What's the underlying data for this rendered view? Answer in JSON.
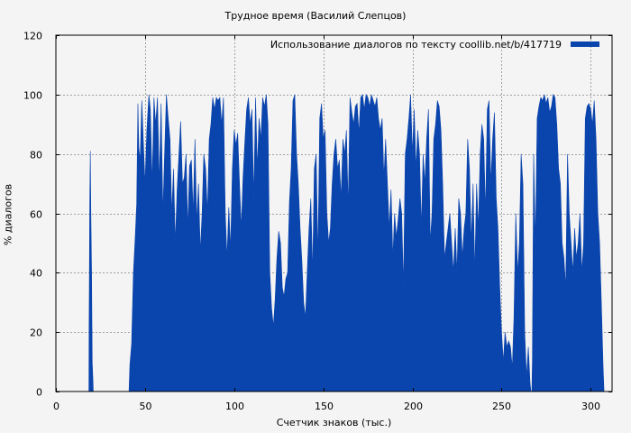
{
  "chart_data": {
    "type": "area",
    "title": "Трудное время (Василий Слепцов)",
    "xlabel": "Счетчик знаков (тыс.)",
    "ylabel": "% диалогов",
    "xlim": [
      0,
      312
    ],
    "ylim": [
      0,
      120
    ],
    "x_ticks": [
      0,
      50,
      100,
      150,
      200,
      250,
      300
    ],
    "y_ticks": [
      0,
      20,
      40,
      60,
      80,
      100,
      120
    ],
    "grid": true,
    "legend_position": "top-right",
    "colors": {
      "series": "#0a44ad",
      "background": "#f4f4f4",
      "grid": "#a0a0a0"
    },
    "series": [
      {
        "name": "Использование диалогов по тексту  coollib.net/b/417719",
        "points": [
          [
            18.5,
            0
          ],
          [
            18.6,
            20
          ],
          [
            19.0,
            65
          ],
          [
            19.3,
            81
          ],
          [
            19.6,
            60
          ],
          [
            20.0,
            40
          ],
          [
            20.4,
            10
          ],
          [
            20.8,
            4
          ],
          [
            21.0,
            0
          ],
          [
            41.0,
            0
          ],
          [
            41.5,
            9
          ],
          [
            42.5,
            16
          ],
          [
            43.5,
            40
          ],
          [
            44.5,
            52
          ],
          [
            45.3,
            63
          ],
          [
            46.0,
            97
          ],
          [
            46.5,
            82
          ],
          [
            47.3,
            78
          ],
          [
            48.2,
            98
          ],
          [
            49.0,
            85
          ],
          [
            50.0,
            70
          ],
          [
            51.0,
            88
          ],
          [
            52.2,
            100
          ],
          [
            53.0,
            95
          ],
          [
            54.0,
            70
          ],
          [
            55.0,
            99
          ],
          [
            56.0,
            90
          ],
          [
            57.0,
            99
          ],
          [
            58.0,
            70
          ],
          [
            59.0,
            97
          ],
          [
            60.0,
            60
          ],
          [
            61.0,
            80
          ],
          [
            62.0,
            100
          ],
          [
            63.0,
            92
          ],
          [
            64.0,
            85
          ],
          [
            65.0,
            60
          ],
          [
            66.0,
            75
          ],
          [
            67.0,
            50
          ],
          [
            68.0,
            68
          ],
          [
            69.0,
            80
          ],
          [
            70.0,
            91
          ],
          [
            71.0,
            70
          ],
          [
            72.0,
            72
          ],
          [
            73.0,
            80
          ],
          [
            74.0,
            55
          ],
          [
            75.0,
            76
          ],
          [
            76.0,
            78
          ],
          [
            77.0,
            60
          ],
          [
            78.0,
            85
          ],
          [
            79.0,
            57
          ],
          [
            80.0,
            70
          ],
          [
            81.0,
            47
          ],
          [
            82.0,
            60
          ],
          [
            83.0,
            80
          ],
          [
            84.0,
            75
          ],
          [
            85.0,
            60
          ],
          [
            86.0,
            85
          ],
          [
            87.0,
            90
          ],
          [
            88.0,
            99
          ],
          [
            89.0,
            95
          ],
          [
            90.0,
            99
          ],
          [
            91.0,
            98
          ],
          [
            92.0,
            99
          ],
          [
            93.0,
            90
          ],
          [
            94.0,
            99
          ],
          [
            95.0,
            60
          ],
          [
            96.0,
            45
          ],
          [
            97.0,
            62
          ],
          [
            98.0,
            48
          ],
          [
            99.0,
            75
          ],
          [
            100.0,
            88
          ],
          [
            101.0,
            83
          ],
          [
            102.0,
            87
          ],
          [
            103.0,
            70
          ],
          [
            104.0,
            55
          ],
          [
            105.0,
            72
          ],
          [
            106.0,
            84
          ],
          [
            107.0,
            95
          ],
          [
            108.0,
            99
          ],
          [
            109.0,
            90
          ],
          [
            110.0,
            95
          ],
          [
            111.0,
            65
          ],
          [
            112.0,
            99
          ],
          [
            113.0,
            75
          ],
          [
            114.0,
            92
          ],
          [
            115.0,
            85
          ],
          [
            116.0,
            99
          ],
          [
            117.0,
            96
          ],
          [
            118.0,
            100
          ],
          [
            119.0,
            90
          ],
          [
            120.0,
            40
          ],
          [
            121.0,
            28
          ],
          [
            122.0,
            22
          ],
          [
            123.0,
            31
          ],
          [
            124.0,
            45
          ],
          [
            125.0,
            54
          ],
          [
            126.0,
            50
          ],
          [
            127.0,
            35
          ],
          [
            128.0,
            32
          ],
          [
            129.0,
            38
          ],
          [
            130.0,
            40
          ],
          [
            131.0,
            64
          ],
          [
            132.0,
            75
          ],
          [
            133.0,
            98
          ],
          [
            134.0,
            100
          ],
          [
            135.0,
            80
          ],
          [
            136.0,
            70
          ],
          [
            137.0,
            55
          ],
          [
            138.0,
            44
          ],
          [
            139.0,
            30
          ],
          [
            140.0,
            25
          ],
          [
            141.0,
            40
          ],
          [
            142.0,
            55
          ],
          [
            143.0,
            65
          ],
          [
            144.0,
            40
          ],
          [
            145.0,
            75
          ],
          [
            146.0,
            80
          ],
          [
            147.0,
            45
          ],
          [
            148.0,
            92
          ],
          [
            149.0,
            97
          ],
          [
            150.0,
            85
          ],
          [
            151.0,
            88
          ],
          [
            152.0,
            60
          ],
          [
            153.0,
            50
          ],
          [
            154.0,
            55
          ],
          [
            155.0,
            70
          ],
          [
            156.0,
            80
          ],
          [
            157.0,
            85
          ],
          [
            158.0,
            75
          ],
          [
            159.0,
            78
          ],
          [
            160.0,
            65
          ],
          [
            161.0,
            85
          ],
          [
            162.0,
            80
          ],
          [
            163.0,
            88
          ],
          [
            164.0,
            62
          ],
          [
            165.0,
            99
          ],
          [
            166.0,
            94
          ],
          [
            167.0,
            90
          ],
          [
            168.0,
            96
          ],
          [
            169.0,
            97
          ],
          [
            170.0,
            87
          ],
          [
            171.0,
            99
          ],
          [
            172.0,
            100
          ],
          [
            173.0,
            95
          ],
          [
            174.0,
            100
          ],
          [
            175.0,
            99
          ],
          [
            176.0,
            96
          ],
          [
            177.0,
            100
          ],
          [
            178.0,
            98
          ],
          [
            179.0,
            96
          ],
          [
            180.0,
            99
          ],
          [
            181.0,
            92
          ],
          [
            182.0,
            88
          ],
          [
            183.0,
            92
          ],
          [
            184.0,
            72
          ],
          [
            185.0,
            85
          ],
          [
            186.0,
            70
          ],
          [
            187.0,
            55
          ],
          [
            188.0,
            68
          ],
          [
            189.0,
            45
          ],
          [
            190.0,
            60
          ],
          [
            191.0,
            52
          ],
          [
            192.0,
            58
          ],
          [
            193.0,
            65
          ],
          [
            194.0,
            60
          ],
          [
            195.0,
            35
          ],
          [
            196.0,
            80
          ],
          [
            197.0,
            85
          ],
          [
            198.0,
            92
          ],
          [
            199.0,
            100
          ],
          [
            200.0,
            80
          ],
          [
            201.0,
            95
          ],
          [
            202.0,
            75
          ],
          [
            203.0,
            88
          ],
          [
            204.0,
            80
          ],
          [
            205.0,
            55
          ],
          [
            206.0,
            80
          ],
          [
            207.0,
            70
          ],
          [
            208.0,
            85
          ],
          [
            209.0,
            95
          ],
          [
            210.0,
            50
          ],
          [
            211.0,
            60
          ],
          [
            212.0,
            85
          ],
          [
            213.0,
            90
          ],
          [
            214.0,
            98
          ],
          [
            215.0,
            96
          ],
          [
            216.0,
            88
          ],
          [
            217.0,
            70
          ],
          [
            218.0,
            45
          ],
          [
            219.0,
            50
          ],
          [
            220.0,
            55
          ],
          [
            221.0,
            60
          ],
          [
            222.0,
            50
          ],
          [
            223.0,
            40
          ],
          [
            224.0,
            55
          ],
          [
            225.0,
            40
          ],
          [
            226.0,
            65
          ],
          [
            227.0,
            60
          ],
          [
            228.0,
            45
          ],
          [
            229.0,
            55
          ],
          [
            230.0,
            60
          ],
          [
            231.0,
            85
          ],
          [
            232.0,
            75
          ],
          [
            233.0,
            50
          ],
          [
            234.0,
            70
          ],
          [
            235.0,
            40
          ],
          [
            236.0,
            70
          ],
          [
            237.0,
            55
          ],
          [
            238.0,
            80
          ],
          [
            239.0,
            90
          ],
          [
            240.0,
            85
          ],
          [
            241.0,
            60
          ],
          [
            242.0,
            95
          ],
          [
            243.0,
            98
          ],
          [
            244.0,
            70
          ],
          [
            245.0,
            85
          ],
          [
            246.0,
            94
          ],
          [
            247.0,
            65
          ],
          [
            248.0,
            55
          ],
          [
            249.0,
            35
          ],
          [
            250.0,
            20
          ],
          [
            251.0,
            10
          ],
          [
            252.0,
            20
          ],
          [
            253.0,
            15
          ],
          [
            254.0,
            17
          ],
          [
            255.0,
            15
          ],
          [
            256.0,
            8
          ],
          [
            257.0,
            25
          ],
          [
            258.0,
            60
          ],
          [
            259.0,
            40
          ],
          [
            260.0,
            50
          ],
          [
            261.0,
            80
          ],
          [
            262.0,
            70
          ],
          [
            263.0,
            20
          ],
          [
            264.0,
            5
          ],
          [
            265.0,
            15
          ],
          [
            266.0,
            3
          ],
          [
            266.5,
            0
          ],
          [
            267.0,
            0
          ],
          [
            267.3,
            10
          ],
          [
            268.0,
            80
          ],
          [
            269.0,
            50
          ],
          [
            270.0,
            92
          ],
          [
            271.0,
            96
          ],
          [
            272.0,
            99
          ],
          [
            273.0,
            98
          ],
          [
            274.0,
            100
          ],
          [
            275.0,
            97
          ],
          [
            276.0,
            99
          ],
          [
            277.0,
            94
          ],
          [
            278.0,
            96
          ],
          [
            279.0,
            100
          ],
          [
            280.0,
            99
          ],
          [
            281.0,
            90
          ],
          [
            282.0,
            75
          ],
          [
            283.0,
            70
          ],
          [
            284.0,
            50
          ],
          [
            285.0,
            45
          ],
          [
            286.0,
            35
          ],
          [
            287.0,
            80
          ],
          [
            288.0,
            60
          ],
          [
            289.0,
            50
          ],
          [
            290.0,
            40
          ],
          [
            291.0,
            55
          ],
          [
            292.0,
            45
          ],
          [
            293.0,
            50
          ],
          [
            294.0,
            60
          ],
          [
            295.0,
            40
          ],
          [
            296.0,
            50
          ],
          [
            297.0,
            92
          ],
          [
            298.0,
            96
          ],
          [
            299.0,
            97
          ],
          [
            300.0,
            95
          ],
          [
            301.0,
            90
          ],
          [
            302.0,
            98
          ],
          [
            303.0,
            85
          ],
          [
            304.0,
            60
          ],
          [
            305.0,
            50
          ],
          [
            306.0,
            30
          ],
          [
            307.0,
            8
          ],
          [
            307.5,
            0
          ]
        ]
      }
    ]
  }
}
